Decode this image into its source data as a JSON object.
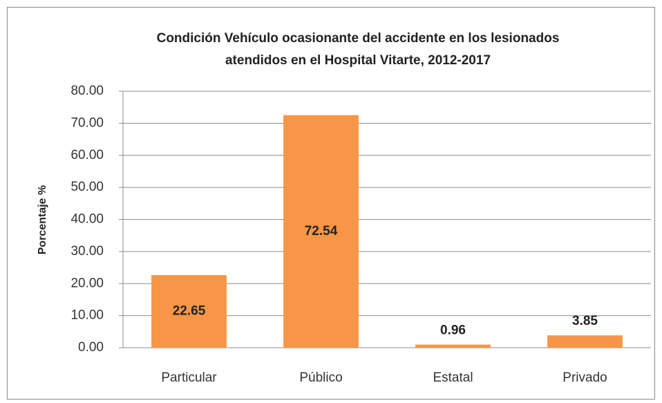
{
  "chart_data": {
    "type": "bar",
    "title": [
      "Condición Vehículo ocasionante del accidente en los lesionados",
      "atendidos en el Hospital Vitarte, 2012-2017"
    ],
    "y_label": "Porcentaje %",
    "categories": [
      "Particular",
      "Público",
      "Estatal",
      "Privado"
    ],
    "values": [
      22.65,
      72.54,
      0.96,
      3.85
    ],
    "color": "#f79646",
    "ylim": [
      0,
      80
    ],
    "yticks": [
      {
        "value": 0,
        "label": "0.00"
      },
      {
        "value": 10,
        "label": "10.00"
      },
      {
        "value": 20,
        "label": "20.00"
      },
      {
        "value": 30,
        "label": "30.00"
      },
      {
        "value": 40,
        "label": "40.00"
      },
      {
        "value": 50,
        "label": "50.00"
      },
      {
        "value": 60,
        "label": "60.00"
      },
      {
        "value": 70,
        "label": "70.00"
      },
      {
        "value": 80,
        "label": "80.00"
      }
    ],
    "grid": true
  }
}
